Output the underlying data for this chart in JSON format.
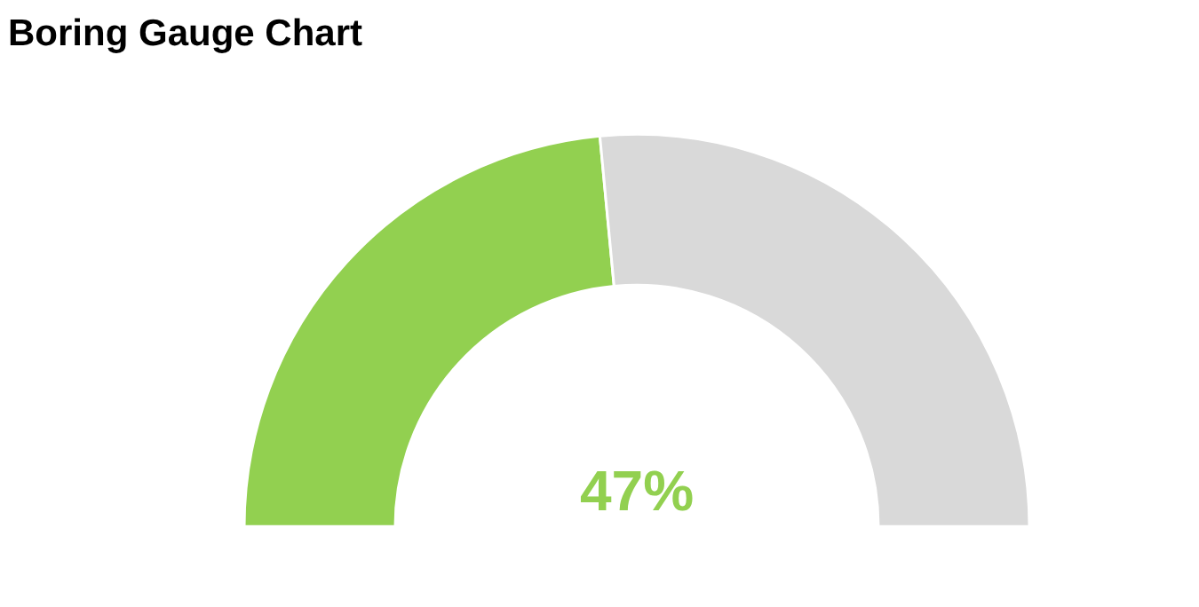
{
  "chart_data": {
    "type": "donut",
    "title": "Boring Gauge Chart",
    "categories": [
      null,
      null
    ],
    "values": [
      47,
      53
    ],
    "colors": [
      "#92d050",
      "#d9d9d9"
    ],
    "value_labels": [
      "47%",
      null
    ]
  }
}
